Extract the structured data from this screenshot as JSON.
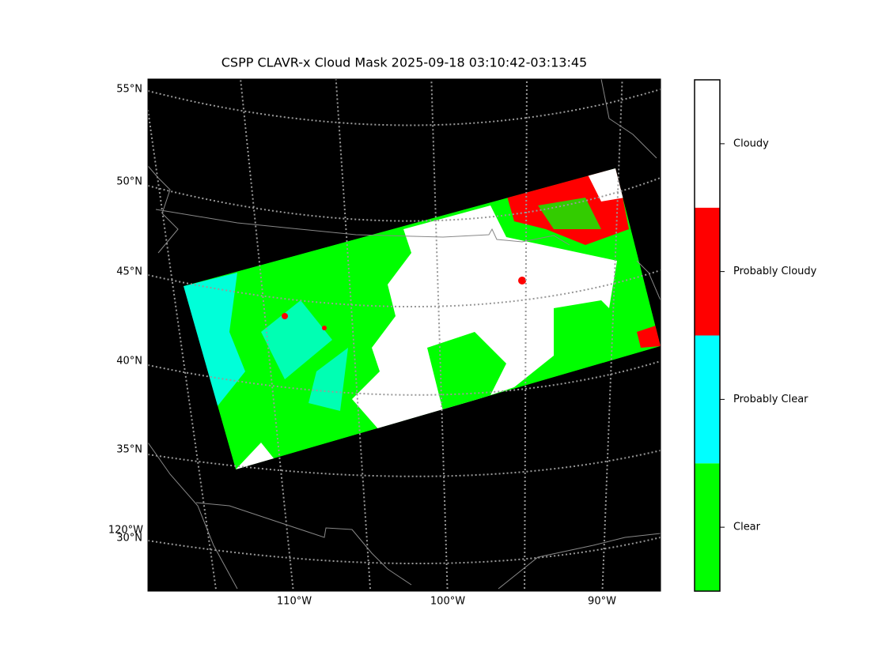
{
  "title": "CSPP CLAVR-x Cloud Mask 2025-09-18 03:10:42-03:13:45",
  "lat_labels": [
    "55°N",
    "50°N",
    "45°N",
    "40°N",
    "35°N",
    "30°N"
  ],
  "lon_labels": [
    "110°W",
    "100°W",
    "90°W",
    "120°W"
  ],
  "colorbar": {
    "categories": [
      "Clear",
      "Probably Clear",
      "Probably Cloudy",
      "Cloudy"
    ],
    "colors": [
      "#00ff00",
      "#00ffff",
      "#ff0000",
      "#ffffff"
    ]
  }
}
